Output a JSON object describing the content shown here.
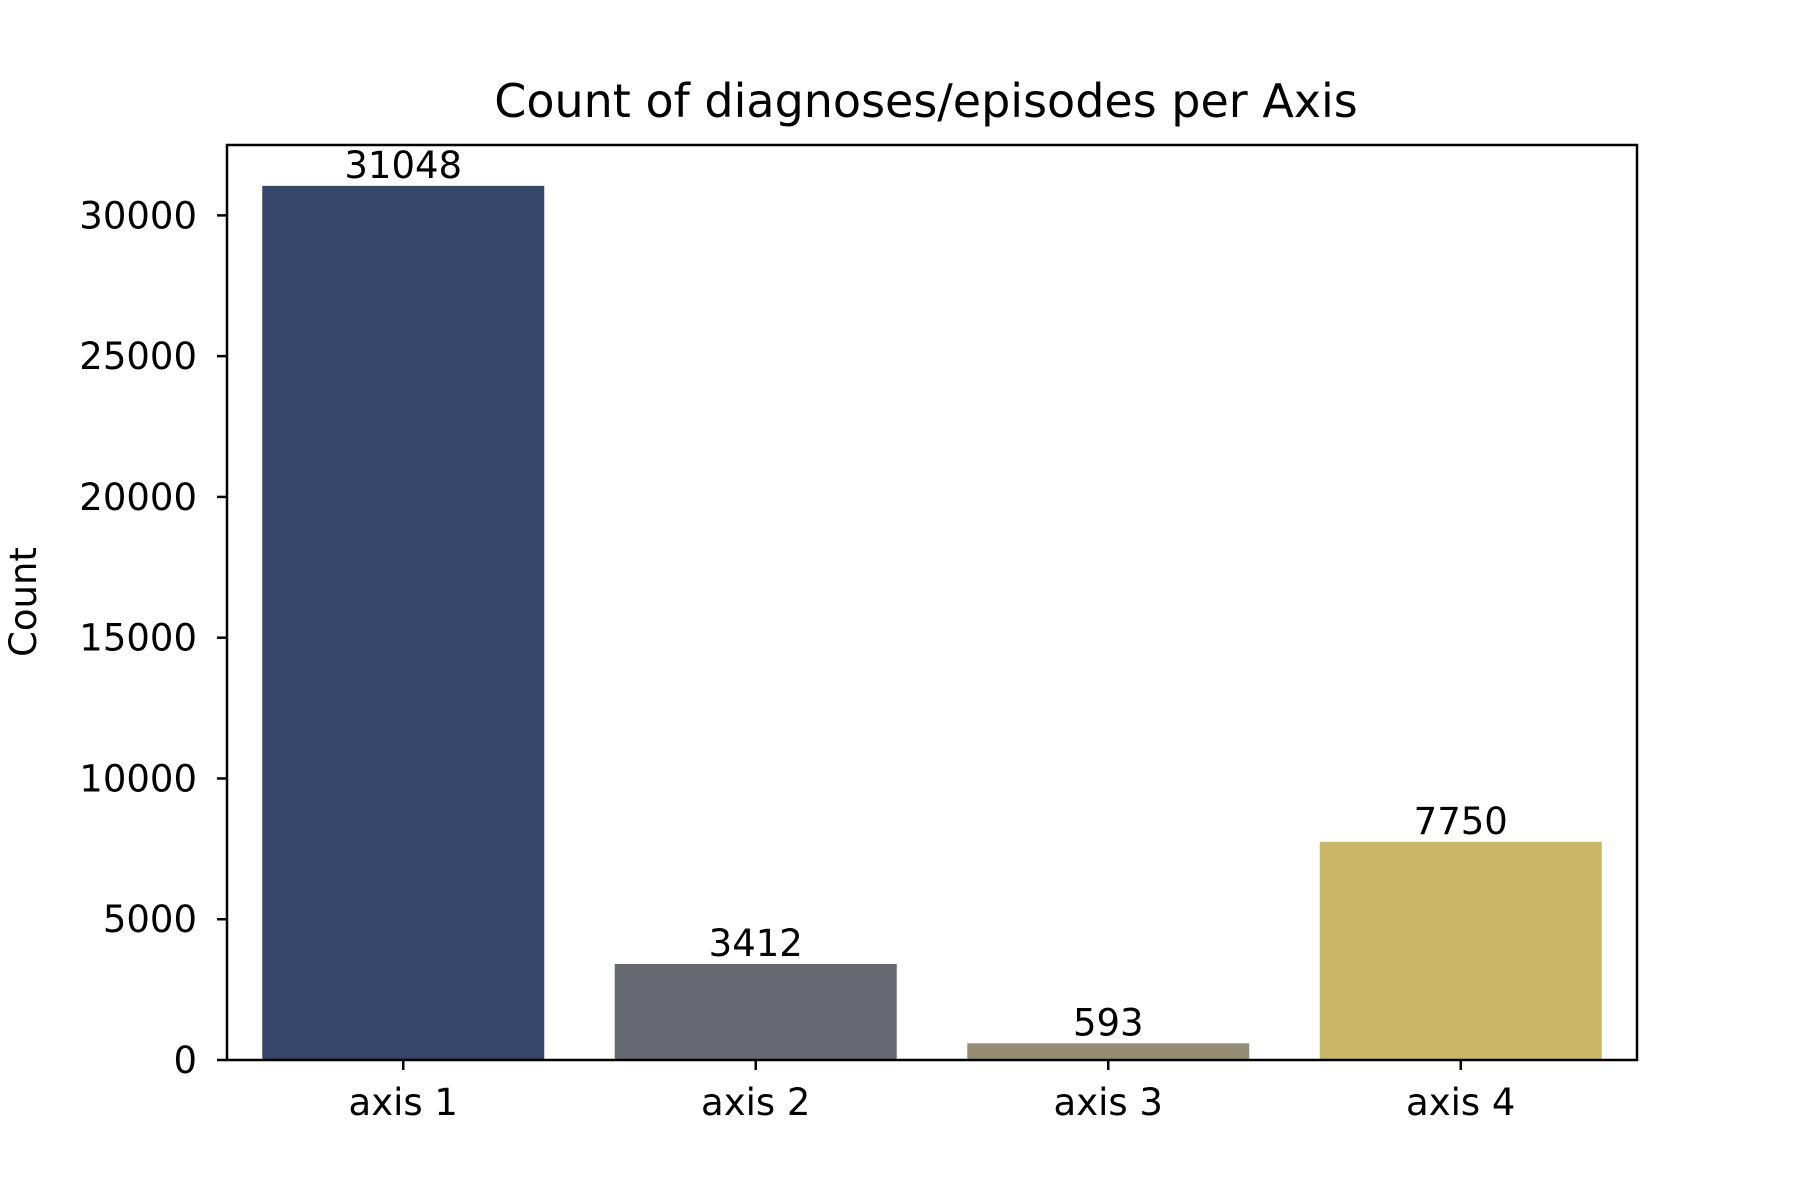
{
  "chart_data": {
    "type": "bar",
    "title": "Count of diagnoses/episodes per Axis",
    "xlabel": "",
    "ylabel": "Count",
    "categories": [
      "axis 1",
      "axis 2",
      "axis 3",
      "axis 4"
    ],
    "values": [
      31048,
      3412,
      593,
      7750
    ],
    "data_labels": [
      "31048",
      "3412",
      "593",
      "7750"
    ],
    "colors": [
      "#37466b",
      "#666970",
      "#958d73",
      "#c9b766"
    ],
    "ylim": [
      0,
      32500
    ],
    "yticks": [
      0,
      5000,
      10000,
      15000,
      20000,
      25000,
      30000
    ],
    "ytick_labels": [
      "0",
      "5000",
      "10000",
      "15000",
      "20000",
      "25000",
      "30000"
    ],
    "grid": false,
    "legend": "none"
  }
}
